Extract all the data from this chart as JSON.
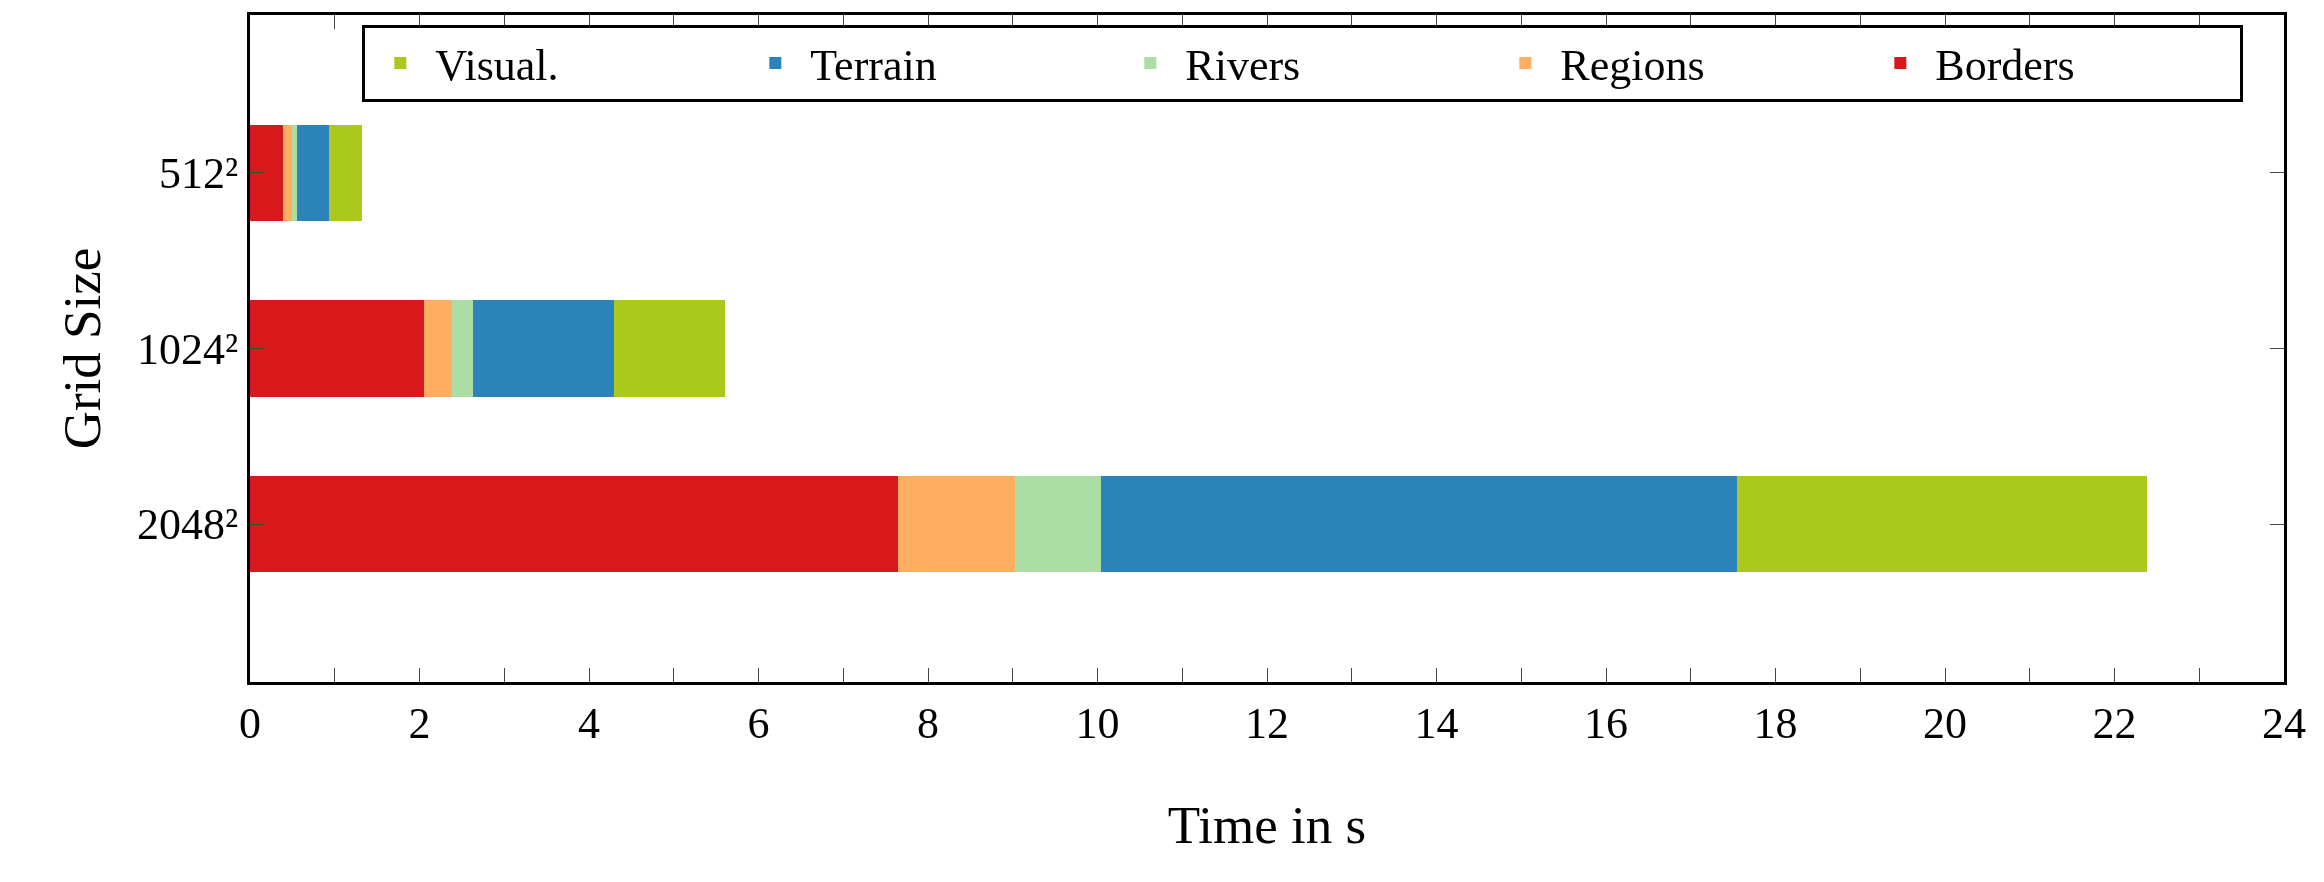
{
  "chart_data": {
    "type": "bar",
    "orientation": "horizontal",
    "stacked": true,
    "categories": [
      "512²",
      "1024²",
      "2048²"
    ],
    "series": [
      {
        "name": "Borders",
        "color": "#d7191c",
        "values": [
          0.39,
          2.05,
          7.65
        ]
      },
      {
        "name": "Regions",
        "color": "#fdae61",
        "values": [
          0.11,
          0.33,
          1.38
        ]
      },
      {
        "name": "Rivers",
        "color": "#abdda4",
        "values": [
          0.05,
          0.25,
          1.01
        ]
      },
      {
        "name": "Terrain",
        "color": "#2b83ba",
        "values": [
          0.38,
          1.66,
          7.51
        ]
      },
      {
        "name": "Visual.",
        "color": "#abc81c",
        "values": [
          0.39,
          1.31,
          4.83
        ]
      }
    ],
    "xlabel": "Time in s",
    "ylabel": "Grid Size",
    "xlim": [
      0,
      24
    ],
    "xticks": [
      0,
      {
        "value": 1,
        "label": null
      },
      2,
      {
        "value": 3,
        "label": null
      },
      4,
      {
        "value": 5,
        "label": null
      },
      6,
      {
        "value": 7,
        "label": null
      },
      8,
      {
        "value": 9,
        "label": null
      },
      10,
      {
        "value": 11,
        "label": null
      },
      12,
      {
        "value": 13,
        "label": null
      },
      14,
      {
        "value": 15,
        "label": null
      },
      16,
      {
        "value": 17,
        "label": null
      },
      18,
      {
        "value": 19,
        "label": null
      },
      20,
      {
        "value": 21,
        "label": null
      },
      22,
      {
        "value": 23,
        "label": null
      },
      24
    ],
    "grid": false,
    "legend": "top right"
  }
}
